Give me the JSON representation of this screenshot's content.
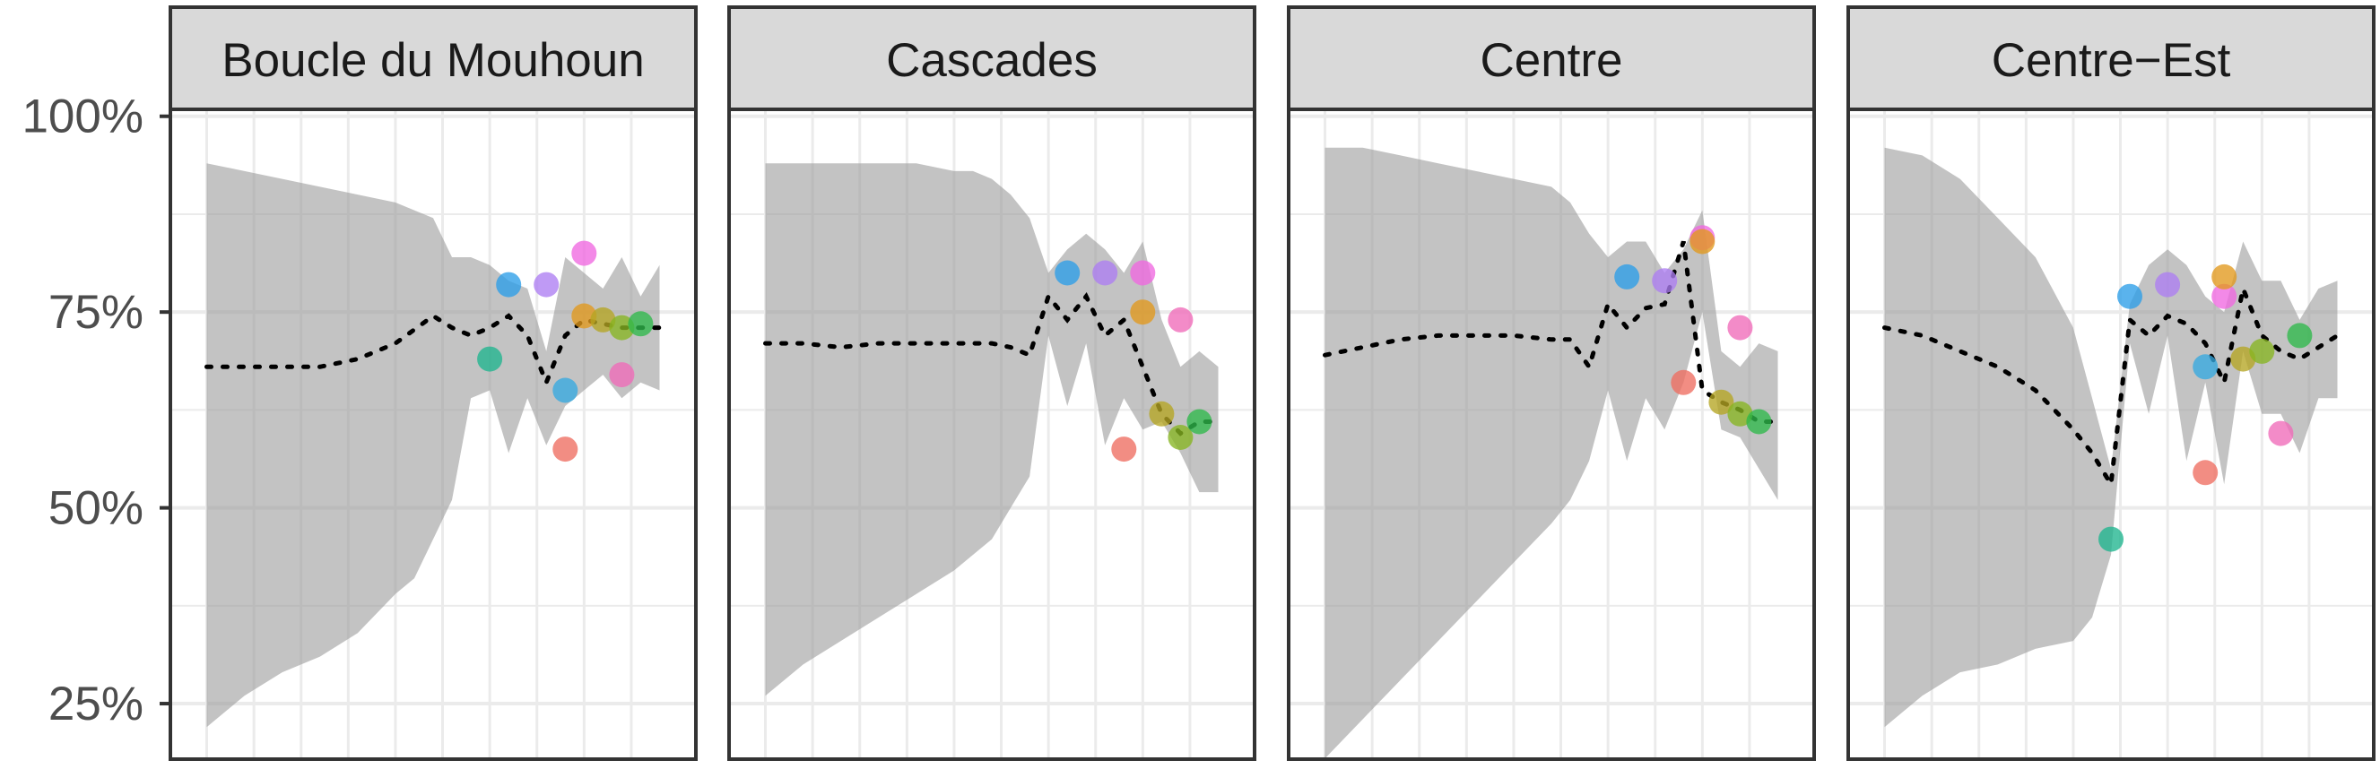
{
  "chart_data": {
    "type": "scatter",
    "ylim": [
      0.21,
      1.01
    ],
    "xlim": [
      1998.5,
      2023.5
    ],
    "y_ticks": [
      0.25,
      0.5,
      0.75,
      1.0
    ],
    "y_tick_labels": [
      "25%",
      "50%",
      "75%",
      "100%"
    ],
    "x_minor_grid": [
      1999,
      2001.5,
      2004,
      2006.5,
      2009,
      2011.5,
      2014,
      2016.5,
      2019,
      2021.5
    ],
    "grid": true,
    "legend": "none",
    "panels": [
      {
        "title": "Boucle du Mouhoun",
        "ribbon_x": [
          1999,
          2001,
          2003,
          2005,
          2007,
          2009,
          2010,
          2011,
          2012,
          2013,
          2014,
          2015,
          2016,
          2017,
          2018,
          2019,
          2020,
          2021,
          2022,
          2023
        ],
        "ribbon_lower": [
          0.22,
          0.26,
          0.29,
          0.31,
          0.34,
          0.39,
          0.41,
          0.46,
          0.51,
          0.64,
          0.65,
          0.57,
          0.64,
          0.58,
          0.63,
          0.65,
          0.67,
          0.64,
          0.66,
          0.65
        ],
        "ribbon_upper": [
          0.94,
          0.93,
          0.92,
          0.91,
          0.9,
          0.89,
          0.88,
          0.87,
          0.82,
          0.82,
          0.81,
          0.79,
          0.78,
          0.7,
          0.82,
          0.8,
          0.78,
          0.82,
          0.77,
          0.81
        ],
        "trend_x": [
          1999,
          2001,
          2003,
          2005,
          2007,
          2009,
          2011,
          2012,
          2013,
          2014,
          2015,
          2016,
          2017,
          2018,
          2019,
          2020,
          2021,
          2022,
          2023
        ],
        "trend_y": [
          0.68,
          0.68,
          0.68,
          0.68,
          0.69,
          0.71,
          0.745,
          0.73,
          0.72,
          0.73,
          0.745,
          0.72,
          0.66,
          0.72,
          0.74,
          0.735,
          0.73,
          0.73,
          0.73
        ],
        "points": [
          {
            "x": 2014,
            "y": 0.69,
            "color": "#1fb58e"
          },
          {
            "x": 2015,
            "y": 0.785,
            "color": "#2b9de8"
          },
          {
            "x": 2017,
            "y": 0.785,
            "color": "#ad7ef2"
          },
          {
            "x": 2018,
            "y": 0.575,
            "color": "#ee6d60"
          },
          {
            "x": 2018,
            "y": 0.65,
            "color": "#36a9e0"
          },
          {
            "x": 2019,
            "y": 0.825,
            "color": "#f068e0"
          },
          {
            "x": 2019,
            "y": 0.745,
            "color": "#e1981c"
          },
          {
            "x": 2020,
            "y": 0.74,
            "color": "#b5a522"
          },
          {
            "x": 2021,
            "y": 0.73,
            "color": "#87b521"
          },
          {
            "x": 2021,
            "y": 0.67,
            "color": "#f06ab8"
          },
          {
            "x": 2022,
            "y": 0.735,
            "color": "#2eb84a"
          }
        ]
      },
      {
        "title": "Cascades",
        "ribbon_x": [
          1999,
          2001,
          2003,
          2005,
          2007,
          2009,
          2010,
          2011,
          2012,
          2013,
          2014,
          2015,
          2016,
          2017,
          2018,
          2019,
          2020,
          2021,
          2022,
          2023
        ],
        "ribbon_lower": [
          0.26,
          0.3,
          0.33,
          0.36,
          0.39,
          0.42,
          0.44,
          0.46,
          0.5,
          0.54,
          0.72,
          0.63,
          0.71,
          0.58,
          0.64,
          0.6,
          0.61,
          0.57,
          0.52,
          0.52
        ],
        "ribbon_upper": [
          0.94,
          0.94,
          0.94,
          0.94,
          0.94,
          0.93,
          0.93,
          0.92,
          0.9,
          0.87,
          0.8,
          0.83,
          0.85,
          0.83,
          0.8,
          0.84,
          0.74,
          0.68,
          0.7,
          0.68
        ],
        "trend_x": [
          1999,
          2001,
          2003,
          2005,
          2007,
          2009,
          2011,
          2012,
          2013,
          2014,
          2015,
          2016,
          2017,
          2018,
          2019,
          2020,
          2021,
          2022,
          2023
        ],
        "trend_y": [
          0.71,
          0.71,
          0.705,
          0.71,
          0.71,
          0.71,
          0.71,
          0.705,
          0.695,
          0.77,
          0.74,
          0.77,
          0.72,
          0.74,
          0.68,
          0.62,
          0.595,
          0.61,
          0.61
        ],
        "points": [
          {
            "x": 2015,
            "y": 0.8,
            "color": "#2b9de8"
          },
          {
            "x": 2017,
            "y": 0.8,
            "color": "#ad7ef2"
          },
          {
            "x": 2018,
            "y": 0.575,
            "color": "#ee6d60"
          },
          {
            "x": 2019,
            "y": 0.8,
            "color": "#f068e0"
          },
          {
            "x": 2019,
            "y": 0.75,
            "color": "#e1981c"
          },
          {
            "x": 2020,
            "y": 0.62,
            "color": "#b5a522"
          },
          {
            "x": 2021,
            "y": 0.59,
            "color": "#87b521"
          },
          {
            "x": 2021,
            "y": 0.74,
            "color": "#f06ab8"
          },
          {
            "x": 2022,
            "y": 0.61,
            "color": "#2eb84a"
          }
        ]
      },
      {
        "title": "Centre",
        "ribbon_x": [
          1999,
          2001,
          2003,
          2005,
          2007,
          2009,
          2011,
          2012,
          2013,
          2014,
          2015,
          2016,
          2017,
          2018,
          2019,
          2020,
          2021,
          2022,
          2023
        ],
        "ribbon_lower": [
          0.18,
          0.23,
          0.28,
          0.33,
          0.38,
          0.43,
          0.48,
          0.51,
          0.56,
          0.65,
          0.56,
          0.64,
          0.6,
          0.66,
          0.75,
          0.6,
          0.59,
          0.55,
          0.51
        ],
        "ribbon_upper": [
          0.96,
          0.96,
          0.95,
          0.94,
          0.93,
          0.92,
          0.91,
          0.89,
          0.85,
          0.82,
          0.84,
          0.84,
          0.8,
          0.83,
          0.88,
          0.7,
          0.68,
          0.71,
          0.7
        ],
        "trend_x": [
          1999,
          2001,
          2003,
          2005,
          2007,
          2009,
          2011,
          2012,
          2013,
          2014,
          2015,
          2016,
          2017,
          2018,
          2019,
          2020,
          2021,
          2022,
          2023
        ],
        "trend_y": [
          0.695,
          0.705,
          0.715,
          0.72,
          0.72,
          0.72,
          0.715,
          0.715,
          0.68,
          0.76,
          0.73,
          0.755,
          0.76,
          0.84,
          0.65,
          0.635,
          0.625,
          0.61,
          0.61
        ],
        "points": [
          {
            "x": 2015,
            "y": 0.795,
            "color": "#2b9de8"
          },
          {
            "x": 2017,
            "y": 0.79,
            "color": "#ad7ef2"
          },
          {
            "x": 2018,
            "y": 0.66,
            "color": "#ee6d60"
          },
          {
            "x": 2019,
            "y": 0.845,
            "color": "#f068e0"
          },
          {
            "x": 2019,
            "y": 0.84,
            "color": "#e1981c"
          },
          {
            "x": 2020,
            "y": 0.635,
            "color": "#b5a522"
          },
          {
            "x": 2021,
            "y": 0.62,
            "color": "#87b521"
          },
          {
            "x": 2021,
            "y": 0.73,
            "color": "#f06ab8"
          },
          {
            "x": 2022,
            "y": 0.61,
            "color": "#2eb84a"
          }
        ]
      },
      {
        "title": "Centre−Est",
        "ribbon_x": [
          1999,
          2001,
          2003,
          2005,
          2007,
          2009,
          2010,
          2011,
          2012,
          2013,
          2014,
          2015,
          2016,
          2017,
          2018,
          2019,
          2020,
          2021,
          2022,
          2023
        ],
        "ribbon_lower": [
          0.22,
          0.26,
          0.29,
          0.3,
          0.32,
          0.33,
          0.36,
          0.44,
          0.71,
          0.62,
          0.72,
          0.56,
          0.66,
          0.53,
          0.7,
          0.62,
          0.62,
          0.57,
          0.64,
          0.64
        ],
        "ribbon_upper": [
          0.96,
          0.95,
          0.92,
          0.87,
          0.82,
          0.73,
          0.64,
          0.55,
          0.76,
          0.81,
          0.83,
          0.81,
          0.77,
          0.75,
          0.84,
          0.79,
          0.79,
          0.74,
          0.78,
          0.79
        ],
        "trend_x": [
          1999,
          2001,
          2003,
          2005,
          2007,
          2009,
          2010,
          2011,
          2012,
          2013,
          2014,
          2015,
          2016,
          2017,
          2018,
          2019,
          2020,
          2021,
          2022,
          2023
        ],
        "trend_y": [
          0.73,
          0.72,
          0.7,
          0.68,
          0.65,
          0.6,
          0.57,
          0.53,
          0.74,
          0.72,
          0.745,
          0.735,
          0.71,
          0.66,
          0.78,
          0.72,
          0.7,
          0.69,
          0.705,
          0.72
        ],
        "points": [
          {
            "x": 2011,
            "y": 0.46,
            "color": "#1fb58e"
          },
          {
            "x": 2012,
            "y": 0.77,
            "color": "#2b9de8"
          },
          {
            "x": 2014,
            "y": 0.785,
            "color": "#ad7ef2"
          },
          {
            "x": 2016,
            "y": 0.545,
            "color": "#ee6d60"
          },
          {
            "x": 2016,
            "y": 0.68,
            "color": "#36a9e0"
          },
          {
            "x": 2017,
            "y": 0.77,
            "color": "#f068e0"
          },
          {
            "x": 2017,
            "y": 0.795,
            "color": "#e1981c"
          },
          {
            "x": 2018,
            "y": 0.69,
            "color": "#b5a522"
          },
          {
            "x": 2019,
            "y": 0.7,
            "color": "#87b521"
          },
          {
            "x": 2020,
            "y": 0.595,
            "color": "#f06ab8"
          },
          {
            "x": 2021,
            "y": 0.72,
            "color": "#2eb84a"
          }
        ]
      }
    ]
  }
}
